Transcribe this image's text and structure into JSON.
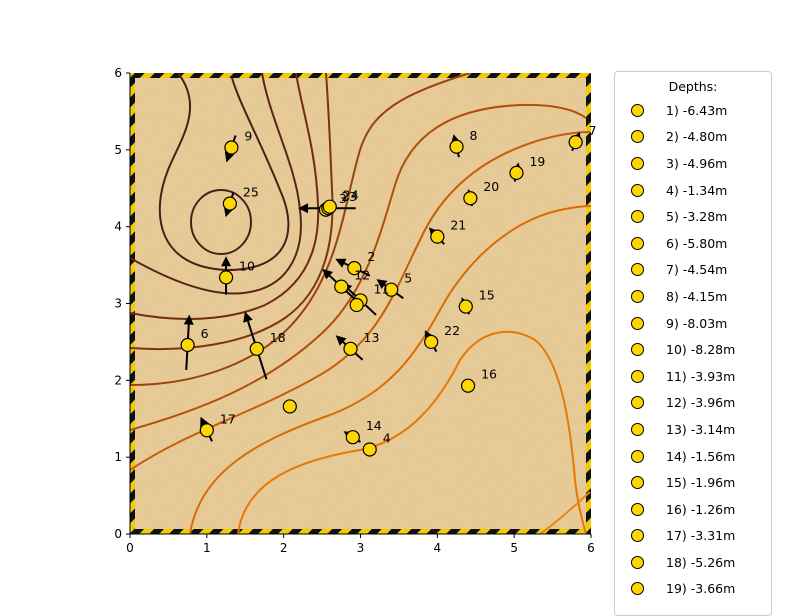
{
  "chart_data": {
    "type": "scatter",
    "title": "",
    "xlabel": "",
    "ylabel": "",
    "xlim": [
      0,
      6
    ],
    "ylim": [
      0,
      6
    ],
    "x_ticks": [
      "0",
      "1",
      "2",
      "3",
      "4",
      "5",
      "6"
    ],
    "y_ticks": [
      "0",
      "1",
      "2",
      "3",
      "4",
      "5",
      "6"
    ],
    "grid": false,
    "background": "sand texture with yellow/black hazard-stripe border",
    "contours": "brown-to-orange contour lines",
    "legend": {
      "title": "Depths:",
      "placement": "outside-right",
      "entries": [
        "1) -6.43m",
        "2) -4.80m",
        "3) -4.96m",
        "4) -1.34m",
        "5) -3.28m",
        "6) -5.80m",
        "7) -4.54m",
        "8) -4.15m",
        "9) -8.03m",
        "10) -8.28m",
        "11) -3.93m",
        "12) -3.96m",
        "13) -3.14m",
        "14) -1.56m",
        "15) -1.96m",
        "16) -1.26m",
        "17) -3.31m",
        "18) -5.26m",
        "19) -3.66m"
      ]
    },
    "points": [
      {
        "label": "",
        "x": 2.08,
        "y": 1.66,
        "depth": -6.43
      },
      {
        "label": "2",
        "x": 2.92,
        "y": 3.46,
        "depth": -4.8
      },
      {
        "label": "3",
        "x": 2.55,
        "y": 4.22,
        "depth": -4.96
      },
      {
        "label": "4",
        "x": 3.12,
        "y": 1.1,
        "depth": -1.34
      },
      {
        "label": "5",
        "x": 3.4,
        "y": 3.18,
        "depth": -3.28
      },
      {
        "label": "6",
        "x": 0.75,
        "y": 2.46,
        "depth": -5.8
      },
      {
        "label": "7",
        "x": 5.8,
        "y": 5.1,
        "depth": -4.54
      },
      {
        "label": "8",
        "x": 4.25,
        "y": 5.04,
        "depth": -4.15
      },
      {
        "label": "9",
        "x": 1.32,
        "y": 5.03,
        "depth": -8.03
      },
      {
        "label": "10",
        "x": 1.25,
        "y": 3.34,
        "depth": -8.28
      },
      {
        "label": "11",
        "x": 3.0,
        "y": 3.04,
        "depth": -3.93
      },
      {
        "label": "12",
        "x": 2.75,
        "y": 3.22,
        "depth": -3.96
      },
      {
        "label": "13",
        "x": 2.87,
        "y": 2.41,
        "depth": -3.14
      },
      {
        "label": "14",
        "x": 2.9,
        "y": 1.26,
        "depth": -1.56
      },
      {
        "label": "15",
        "x": 4.37,
        "y": 2.96,
        "depth": -1.96
      },
      {
        "label": "16",
        "x": 4.4,
        "y": 1.93,
        "depth": -1.26
      },
      {
        "label": "17",
        "x": 1.0,
        "y": 1.35,
        "depth": -3.31
      },
      {
        "label": "18",
        "x": 1.65,
        "y": 2.41,
        "depth": -5.26
      },
      {
        "label": "19",
        "x": 5.03,
        "y": 4.7,
        "depth": -3.66
      },
      {
        "label": "20",
        "x": 4.43,
        "y": 4.37,
        "depth": null
      },
      {
        "label": "21",
        "x": 4.0,
        "y": 3.87,
        "depth": null
      },
      {
        "label": "22",
        "x": 3.92,
        "y": 2.5,
        "depth": null
      },
      {
        "label": "23",
        "x": 2.58,
        "y": 4.24,
        "depth": null
      },
      {
        "label": "24",
        "x": 2.6,
        "y": 4.26,
        "depth": null
      },
      {
        "label": "25",
        "x": 1.3,
        "y": 4.3,
        "depth": null
      },
      {
        "label": "",
        "x": 2.95,
        "y": 2.98,
        "depth": null
      }
    ],
    "arrows": [
      {
        "x": 1.32,
        "y": 5.03,
        "dx": -0.12,
        "dy": -0.35
      },
      {
        "x": 1.3,
        "y": 4.3,
        "dx": -0.1,
        "dy": -0.32
      },
      {
        "x": 1.25,
        "y": 3.34,
        "dx": 0.0,
        "dy": 0.5
      },
      {
        "x": 0.75,
        "y": 2.46,
        "dx": 0.04,
        "dy": 0.72
      },
      {
        "x": 1.65,
        "y": 2.41,
        "dx": -0.28,
        "dy": 0.88
      },
      {
        "x": 1.0,
        "y": 1.35,
        "dx": -0.15,
        "dy": 0.32
      },
      {
        "x": 2.6,
        "y": 4.24,
        "dx": -0.75,
        "dy": 0.0
      },
      {
        "x": 2.92,
        "y": 3.46,
        "dx": -0.45,
        "dy": 0.22
      },
      {
        "x": 2.75,
        "y": 3.22,
        "dx": -0.45,
        "dy": 0.42
      },
      {
        "x": 3.0,
        "y": 3.04,
        "dx": -0.45,
        "dy": 0.42
      },
      {
        "x": 3.4,
        "y": 3.18,
        "dx": -0.35,
        "dy": 0.25
      },
      {
        "x": 2.87,
        "y": 2.41,
        "dx": -0.35,
        "dy": 0.32
      },
      {
        "x": 2.9,
        "y": 1.26,
        "dx": -0.22,
        "dy": 0.14
      },
      {
        "x": 4.25,
        "y": 5.04,
        "dx": -0.07,
        "dy": 0.3
      },
      {
        "x": 5.8,
        "y": 5.1,
        "dx": 0.1,
        "dy": 0.25
      },
      {
        "x": 5.03,
        "y": 4.7,
        "dx": 0.05,
        "dy": 0.25
      },
      {
        "x": 4.43,
        "y": 4.37,
        "dx": -0.05,
        "dy": 0.22
      },
      {
        "x": 4.0,
        "y": 3.87,
        "dx": -0.2,
        "dy": 0.22
      },
      {
        "x": 3.92,
        "y": 2.5,
        "dx": -0.15,
        "dy": 0.28
      },
      {
        "x": 4.37,
        "y": 2.96,
        "dx": -0.1,
        "dy": 0.22
      },
      {
        "x": 4.4,
        "y": 1.93,
        "dx": -0.03,
        "dy": 0.15
      }
    ]
  }
}
